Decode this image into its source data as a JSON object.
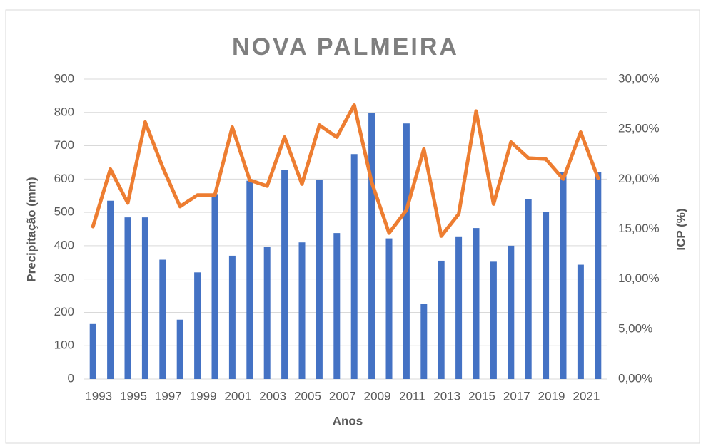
{
  "chart_data": {
    "type": "bar_line",
    "title": "NOVA PALMEIRA",
    "x_label": "Anos",
    "y_label": "Precipitação (mm)",
    "y2_label": "ICP (%)",
    "categories": [
      "1993",
      null,
      "1995",
      null,
      "1997",
      null,
      "1999",
      null,
      "2001",
      null,
      "2003",
      null,
      "2005",
      null,
      "2007",
      null,
      "2009",
      null,
      "2011",
      null,
      "2013",
      null,
      "2015",
      null,
      "2017",
      null,
      "2019",
      null,
      "2021",
      null
    ],
    "series": [
      {
        "type": "bar",
        "color": "#4472c4",
        "values": [
          165,
          535,
          485,
          485,
          358,
          178,
          320,
          555,
          370,
          595,
          397,
          628,
          410,
          598,
          438,
          675,
          798,
          422,
          767,
          225,
          355,
          428,
          453,
          352,
          400,
          540,
          502,
          622,
          343,
          622
        ]
      },
      {
        "type": "line",
        "axis": "y2",
        "color": "#ed7d31",
        "values": [
          15.25,
          21.0,
          17.6,
          25.7,
          21.2,
          17.25,
          18.4,
          18.4,
          25.2,
          19.9,
          19.3,
          24.2,
          19.5,
          25.4,
          24.2,
          27.4,
          19.7,
          14.6,
          16.9,
          23.0,
          14.3,
          16.5,
          26.8,
          17.5,
          23.7,
          22.1,
          22.0,
          20.0,
          24.7,
          20.1
        ]
      }
    ],
    "ylim": [
      0,
      900
    ],
    "yticks": [
      0,
      100,
      200,
      300,
      400,
      500,
      600,
      700,
      800,
      900
    ],
    "y2lim": [
      0,
      30
    ],
    "y2ticks": [
      {
        "value": 0,
        "label": "0,00%"
      },
      {
        "value": 5,
        "label": "5,00%"
      },
      {
        "value": 10,
        "label": "10,00%"
      },
      {
        "value": 15,
        "label": "15,00%"
      },
      {
        "value": 20,
        "label": "20,00%"
      },
      {
        "value": 25,
        "label": "25,00%"
      },
      {
        "value": 30,
        "label": "30,00%"
      }
    ],
    "grid": true
  }
}
